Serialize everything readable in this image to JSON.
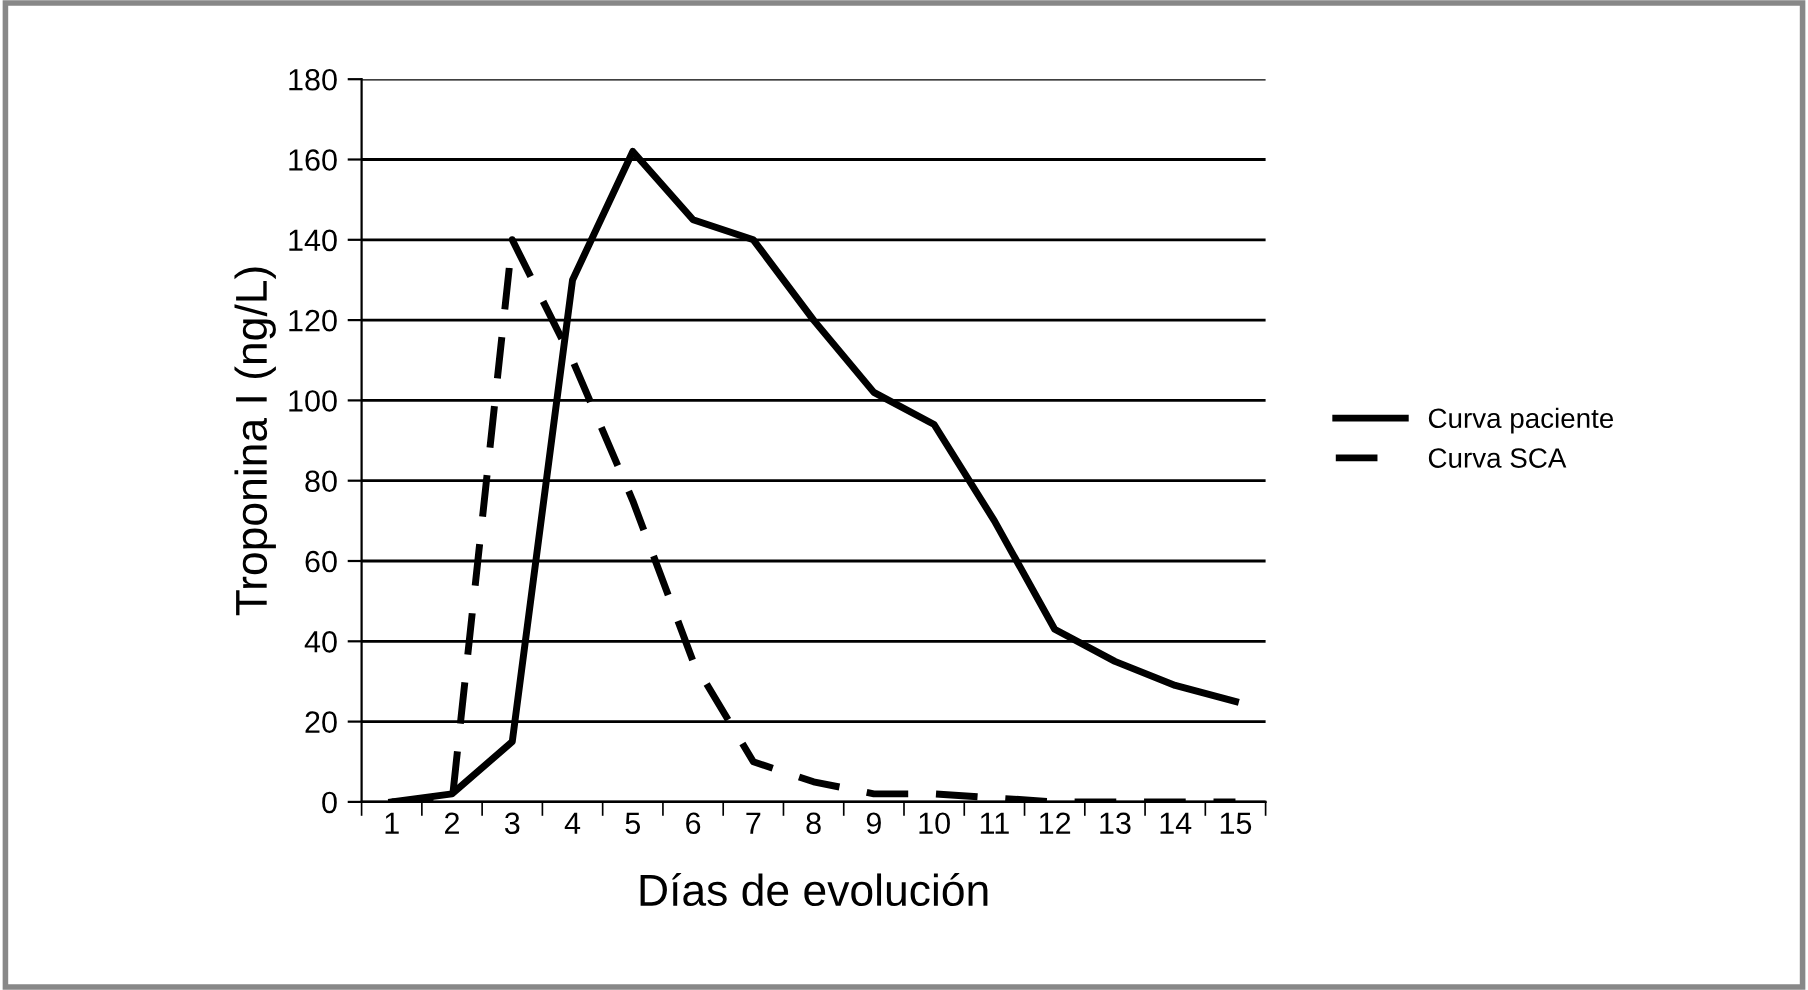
{
  "chart_data": {
    "type": "line",
    "xlabel": "Días de evolución",
    "ylabel": "Troponina I (ng/L)",
    "categories": [
      "1",
      "2",
      "3",
      "4",
      "5",
      "6",
      "7",
      "8",
      "9",
      "10",
      "11",
      "12",
      "13",
      "14",
      "15"
    ],
    "series": [
      {
        "name": "Curva paciente",
        "color": "#000000",
        "line_style": "solid",
        "values": [
          0,
          2,
          15,
          130,
          162,
          145,
          140,
          120,
          102,
          94,
          70,
          43,
          35,
          29,
          25
        ]
      },
      {
        "name": "Curva SCA",
        "color": "#000000",
        "line_style": "dashed",
        "values": [
          0,
          0,
          140,
          110,
          75,
          35,
          10,
          5,
          2,
          2,
          1,
          0,
          0,
          0,
          0
        ]
      }
    ],
    "ylim": [
      0,
      180
    ],
    "yticks": [
      0,
      20,
      40,
      60,
      80,
      100,
      120,
      140,
      160,
      180
    ],
    "grid": "y",
    "legend": "right",
    "marker": "none"
  }
}
